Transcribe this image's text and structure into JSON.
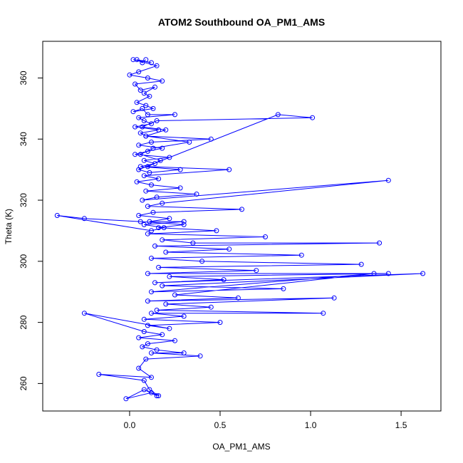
{
  "chart_data": {
    "type": "line",
    "title": "ATOM2 Southbound OA_PM1_AMS",
    "xlabel": "OA_PM1_AMS",
    "ylabel": "Theta (K)",
    "xlim": [
      -0.48,
      1.72
    ],
    "ylim": [
      251,
      372
    ],
    "xticks": [
      0.0,
      0.5,
      1.0,
      1.5
    ],
    "xtick_labels": [
      "0.0",
      "0.5",
      "1.0",
      "1.5"
    ],
    "yticks": [
      260,
      280,
      300,
      320,
      340,
      360
    ],
    "ytick_labels": [
      "260",
      "280",
      "300",
      "320",
      "340",
      "360"
    ],
    "grid": false,
    "legend": "none",
    "series": [
      {
        "marker": "open-circle",
        "color": "#0000ff",
        "x": [
          0.09,
          0.07,
          0.04,
          0.12,
          0.02,
          0.15,
          0.05,
          0.0,
          0.1,
          0.18,
          0.03,
          0.06,
          0.14,
          0.08,
          0.11,
          0.04,
          0.09,
          0.13,
          0.02,
          0.07,
          0.1,
          0.25,
          0.05,
          0.08,
          0.12,
          0.03,
          0.16,
          0.06,
          0.09,
          0.45,
          0.12,
          0.05,
          0.18,
          0.1,
          0.03,
          0.22,
          0.08,
          0.14,
          0.06,
          0.28,
          0.11,
          0.05,
          0.82,
          1.01,
          0.15,
          0.07,
          0.2,
          0.09,
          0.33,
          0.13,
          0.06,
          0.17,
          0.1,
          0.55,
          0.08,
          0.16,
          0.04,
          0.12,
          0.28,
          0.09,
          0.37,
          0.15,
          0.07,
          1.43,
          0.18,
          0.1,
          0.62,
          0.13,
          0.05,
          0.22,
          0.11,
          0.3,
          0.08,
          0.19,
          0.12,
          -0.4,
          -0.25,
          0.06,
          0.3,
          0.16,
          0.48,
          0.1,
          0.75,
          0.18,
          0.35,
          1.38,
          0.14,
          0.55,
          0.2,
          0.95,
          0.12,
          0.4,
          1.28,
          0.16,
          0.7,
          0.1,
          1.43,
          0.22,
          0.52,
          0.14,
          1.62,
          0.18,
          0.85,
          0.12,
          1.35,
          0.25,
          0.6,
          0.1,
          1.13,
          0.2,
          0.45,
          0.15,
          1.07,
          0.12,
          0.3,
          0.08,
          0.5,
          0.1,
          0.22,
          -0.25,
          0.08,
          0.18,
          0.05,
          0.25,
          0.1,
          0.07,
          0.15,
          0.3,
          0.12,
          0.39,
          0.09,
          0.05,
          0.12,
          -0.17,
          0.08,
          0.11,
          0.16,
          0.12,
          -0.02,
          0.08,
          0.15
        ],
        "y": [
          366,
          365,
          366,
          365,
          366,
          364,
          362,
          361,
          360,
          359,
          358,
          356,
          357,
          355,
          354,
          352,
          351,
          350,
          349,
          350,
          348,
          348,
          347,
          346,
          345,
          344,
          343,
          342,
          341,
          340,
          339,
          338,
          337,
          336,
          335,
          334,
          333,
          332,
          331,
          330,
          329,
          330,
          348,
          347,
          346,
          344,
          343,
          341,
          339,
          337,
          335,
          333,
          331,
          330,
          328,
          327,
          326,
          325,
          324,
          323,
          322,
          321,
          320,
          326.5,
          319,
          318,
          317,
          316,
          315,
          314,
          313,
          313,
          312,
          311,
          310,
          315,
          314,
          313,
          312,
          311,
          310,
          309,
          308,
          307,
          306,
          306,
          305,
          304,
          303,
          302,
          301,
          300,
          299,
          298,
          297,
          296,
          296,
          295,
          294,
          293,
          296,
          292,
          291,
          290,
          296,
          289,
          288,
          287,
          288,
          286,
          285,
          284,
          283,
          283,
          282,
          281,
          280,
          279,
          278,
          283,
          277,
          276,
          275,
          274,
          273,
          272,
          271,
          270,
          270,
          269,
          268,
          265,
          262,
          263,
          261,
          258,
          256,
          257,
          255,
          258,
          256
        ]
      }
    ]
  }
}
